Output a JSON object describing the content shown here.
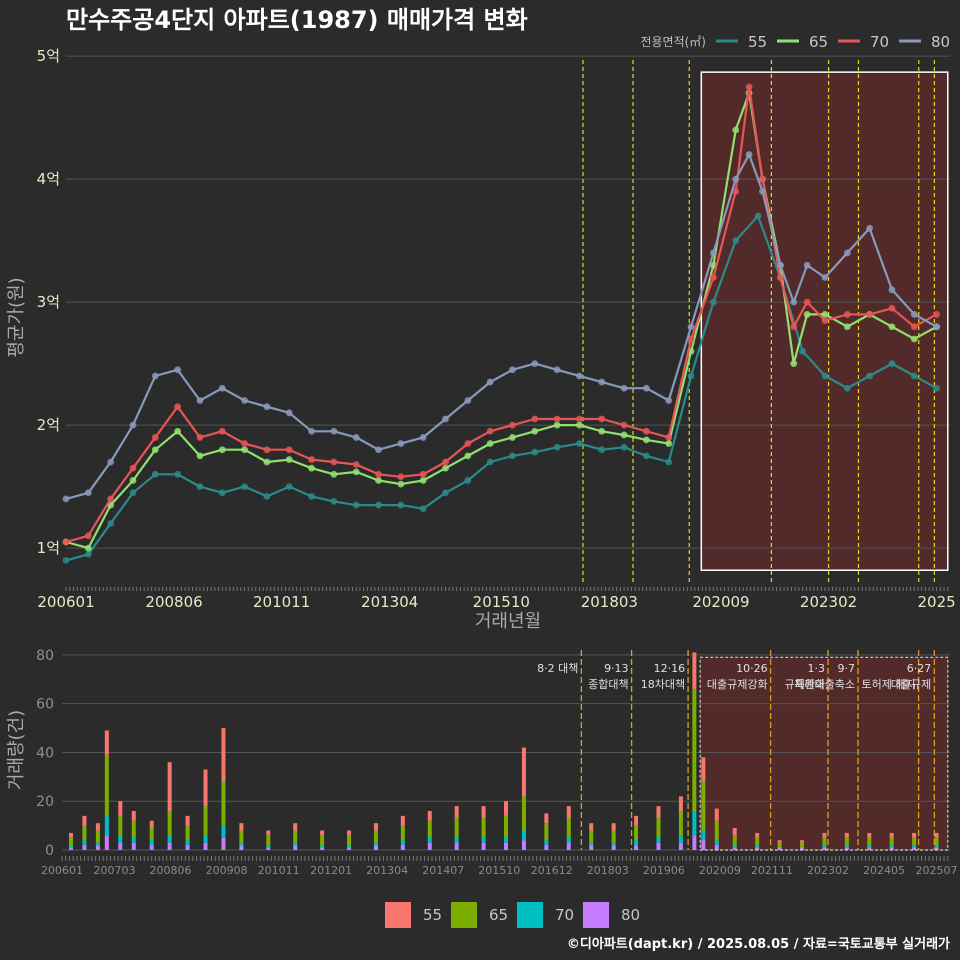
{
  "title": "만수주공4단지 아파트(1987) 매매가격 변화",
  "credit": "©디아파트(dapt.kr) / 2025.08.05 / 자료=국토교통부 실거래가",
  "colors": {
    "bg": "#2b2b2b",
    "grid": "#555555",
    "highlight_fill": "#5a2a2a",
    "vline": "#e6d81a",
    "vline2": "#d9a020"
  },
  "chart_data": [
    {
      "type": "line",
      "name": "price-chart",
      "xlabel": "거래년월",
      "ylabel": "평균가(원)",
      "y_unit": "억",
      "ylim": [
        0.7,
        5.05
      ],
      "y_ticks": [
        {
          "value": 1,
          "label": "1억"
        },
        {
          "value": 2,
          "label": "2억"
        },
        {
          "value": 3,
          "label": "3억"
        },
        {
          "value": 4,
          "label": "4억"
        },
        {
          "value": 5,
          "label": "5억"
        }
      ],
      "x_range": [
        2006.0,
        2025.8
      ],
      "x_ticks": [
        {
          "value": 2006.0,
          "label": "200601"
        },
        {
          "value": 2008.42,
          "label": "200806"
        },
        {
          "value": 2010.83,
          "label": "201011"
        },
        {
          "value": 2013.25,
          "label": "201304"
        },
        {
          "value": 2015.75,
          "label": "201510"
        },
        {
          "value": 2018.17,
          "label": "201803"
        },
        {
          "value": 2020.67,
          "label": "202009"
        },
        {
          "value": 2023.08,
          "label": "202302"
        },
        {
          "value": 2025.5,
          "label": "2025"
        }
      ],
      "legend": {
        "title": "전용면적(㎡)",
        "position": "top-right"
      },
      "series": [
        {
          "name": "55",
          "color": "#2b8a8a",
          "x": [
            2006.0,
            2006.5,
            2007.0,
            2007.5,
            2008.0,
            2008.5,
            2009.0,
            2009.5,
            2010.0,
            2010.5,
            2011.0,
            2011.5,
            2012.0,
            2012.5,
            2013.0,
            2013.5,
            2014.0,
            2014.5,
            2015.0,
            2015.5,
            2016.0,
            2016.5,
            2017.0,
            2017.5,
            2018.0,
            2018.5,
            2019.0,
            2019.5,
            2020.0,
            2020.5,
            2021.0,
            2021.5,
            2022.0,
            2022.5,
            2023.0,
            2023.5,
            2024.0,
            2024.5,
            2025.0,
            2025.5
          ],
          "y": [
            0.9,
            0.95,
            1.2,
            1.45,
            1.6,
            1.6,
            1.5,
            1.45,
            1.5,
            1.42,
            1.5,
            1.42,
            1.38,
            1.35,
            1.35,
            1.35,
            1.32,
            1.45,
            1.55,
            1.7,
            1.75,
            1.78,
            1.82,
            1.85,
            1.8,
            1.82,
            1.75,
            1.7,
            2.4,
            3.0,
            3.5,
            3.7,
            3.2,
            2.6,
            2.4,
            2.3,
            2.4,
            2.5,
            2.4,
            2.3
          ]
        },
        {
          "name": "65",
          "color": "#90e070",
          "x": [
            2006.0,
            2006.5,
            2007.0,
            2007.5,
            2008.0,
            2008.5,
            2009.0,
            2009.5,
            2010.0,
            2010.5,
            2011.0,
            2011.5,
            2012.0,
            2012.5,
            2013.0,
            2013.5,
            2014.0,
            2014.5,
            2015.0,
            2015.5,
            2016.0,
            2016.5,
            2017.0,
            2017.5,
            2018.0,
            2018.5,
            2019.0,
            2019.5,
            2020.0,
            2020.5,
            2021.0,
            2021.3,
            2021.6,
            2022.0,
            2022.3,
            2022.6,
            2023.0,
            2023.5,
            2024.0,
            2024.5,
            2025.0,
            2025.5
          ],
          "y": [
            1.05,
            1.0,
            1.35,
            1.55,
            1.8,
            1.95,
            1.75,
            1.8,
            1.8,
            1.7,
            1.72,
            1.65,
            1.6,
            1.62,
            1.55,
            1.52,
            1.55,
            1.65,
            1.75,
            1.85,
            1.9,
            1.95,
            2.0,
            2.0,
            1.95,
            1.92,
            1.88,
            1.85,
            2.6,
            3.3,
            4.4,
            4.7,
            4.0,
            3.3,
            2.5,
            2.9,
            2.9,
            2.8,
            2.9,
            2.8,
            2.7,
            2.8
          ]
        },
        {
          "name": "70",
          "color": "#e85555",
          "x": [
            2006.0,
            2006.5,
            2007.0,
            2007.5,
            2008.0,
            2008.5,
            2009.0,
            2009.5,
            2010.0,
            2010.5,
            2011.0,
            2011.5,
            2012.0,
            2012.5,
            2013.0,
            2013.5,
            2014.0,
            2014.5,
            2015.0,
            2015.5,
            2016.0,
            2016.5,
            2017.0,
            2017.5,
            2018.0,
            2018.5,
            2019.0,
            2019.5,
            2020.0,
            2020.5,
            2021.0,
            2021.3,
            2021.6,
            2022.0,
            2022.3,
            2022.6,
            2023.0,
            2023.5,
            2024.0,
            2024.5,
            2025.0,
            2025.5
          ],
          "y": [
            1.05,
            1.1,
            1.4,
            1.65,
            1.9,
            2.15,
            1.9,
            1.95,
            1.85,
            1.8,
            1.8,
            1.72,
            1.7,
            1.68,
            1.6,
            1.58,
            1.6,
            1.7,
            1.85,
            1.95,
            2.0,
            2.05,
            2.05,
            2.05,
            2.05,
            2.0,
            1.95,
            1.9,
            2.7,
            3.2,
            3.9,
            4.75,
            4.0,
            3.2,
            2.8,
            3.0,
            2.85,
            2.9,
            2.9,
            2.95,
            2.8,
            2.9
          ]
        },
        {
          "name": "80",
          "color": "#8899bb",
          "x": [
            2006.0,
            2006.5,
            2007.0,
            2007.5,
            2008.0,
            2008.5,
            2009.0,
            2009.5,
            2010.0,
            2010.5,
            2011.0,
            2011.5,
            2012.0,
            2012.5,
            2013.0,
            2013.5,
            2014.0,
            2014.5,
            2015.0,
            2015.5,
            2016.0,
            2016.5,
            2017.0,
            2017.5,
            2018.0,
            2018.5,
            2019.0,
            2019.5,
            2020.0,
            2020.5,
            2021.0,
            2021.3,
            2021.6,
            2022.0,
            2022.3,
            2022.6,
            2023.0,
            2023.5,
            2024.0,
            2024.5,
            2025.0,
            2025.5
          ],
          "y": [
            1.4,
            1.45,
            1.7,
            2.0,
            2.4,
            2.45,
            2.2,
            2.3,
            2.2,
            2.15,
            2.1,
            1.95,
            1.95,
            1.9,
            1.8,
            1.85,
            1.9,
            2.05,
            2.2,
            2.35,
            2.45,
            2.5,
            2.45,
            2.4,
            2.35,
            2.3,
            2.3,
            2.2,
            2.8,
            3.4,
            4.0,
            4.2,
            3.9,
            3.3,
            3.0,
            3.3,
            3.2,
            3.4,
            3.6,
            3.1,
            2.9,
            2.8
          ]
        }
      ],
      "highlight_box": {
        "x_start": 2020.23,
        "x_end": 2025.75,
        "y_start": 0.82,
        "y_end": 4.87
      },
      "vlines": [
        2017.58,
        2018.7,
        2019.96,
        2021.8,
        2023.08,
        2023.75,
        2025.1,
        2025.45
      ]
    },
    {
      "type": "bar",
      "name": "volume-chart",
      "xlabel": "",
      "ylabel": "거래량(건)",
      "ylim": [
        0,
        82
      ],
      "y_ticks": [
        0,
        20,
        40,
        60,
        80
      ],
      "x_range": [
        2006.0,
        2025.8
      ],
      "x_ticks": [
        {
          "value": 2006.0,
          "label": "200601"
        },
        {
          "value": 2007.17,
          "label": "200703"
        },
        {
          "value": 2008.42,
          "label": "200806"
        },
        {
          "value": 2009.67,
          "label": "200908"
        },
        {
          "value": 2010.83,
          "label": "201011"
        },
        {
          "value": 2012.0,
          "label": "201201"
        },
        {
          "value": 2013.25,
          "label": "201304"
        },
        {
          "value": 2014.5,
          "label": "201407"
        },
        {
          "value": 2015.75,
          "label": "201510"
        },
        {
          "value": 2016.92,
          "label": "201612"
        },
        {
          "value": 2018.17,
          "label": "201803"
        },
        {
          "value": 2019.42,
          "label": "201906"
        },
        {
          "value": 2020.67,
          "label": "202009"
        },
        {
          "value": 2021.83,
          "label": "202111"
        },
        {
          "value": 2023.08,
          "label": "202302"
        },
        {
          "value": 2024.33,
          "label": "202405"
        },
        {
          "value": 2025.5,
          "label": "202507"
        }
      ],
      "legend": {
        "position": "bottom"
      },
      "series_names": [
        "55",
        "65",
        "70",
        "80"
      ],
      "series_colors": [
        "#f8766d",
        "#7cae00",
        "#00bfc4",
        "#c77cff"
      ],
      "bars": [
        {
          "x": 2006.2,
          "v": [
            2,
            3,
            1,
            1
          ]
        },
        {
          "x": 2006.5,
          "v": [
            4,
            6,
            2,
            2
          ]
        },
        {
          "x": 2006.8,
          "v": [
            3,
            5,
            1,
            2
          ]
        },
        {
          "x": 2007.0,
          "v": [
            10,
            25,
            8,
            6
          ]
        },
        {
          "x": 2007.3,
          "v": [
            6,
            8,
            3,
            3
          ]
        },
        {
          "x": 2007.6,
          "v": [
            4,
            7,
            2,
            3
          ]
        },
        {
          "x": 2008.0,
          "v": [
            3,
            5,
            2,
            2
          ]
        },
        {
          "x": 2008.4,
          "v": [
            20,
            10,
            3,
            3
          ]
        },
        {
          "x": 2008.8,
          "v": [
            4,
            6,
            2,
            2
          ]
        },
        {
          "x": 2009.2,
          "v": [
            15,
            12,
            3,
            3
          ]
        },
        {
          "x": 2009.6,
          "v": [
            22,
            18,
            5,
            5
          ]
        },
        {
          "x": 2010.0,
          "v": [
            3,
            5,
            1,
            2
          ]
        },
        {
          "x": 2010.6,
          "v": [
            2,
            4,
            1,
            1
          ]
        },
        {
          "x": 2011.2,
          "v": [
            3,
            5,
            1,
            2
          ]
        },
        {
          "x": 2011.8,
          "v": [
            2,
            4,
            1,
            1
          ]
        },
        {
          "x": 2012.4,
          "v": [
            2,
            4,
            1,
            1
          ]
        },
        {
          "x": 2013.0,
          "v": [
            3,
            5,
            1,
            2
          ]
        },
        {
          "x": 2013.6,
          "v": [
            4,
            6,
            2,
            2
          ]
        },
        {
          "x": 2014.2,
          "v": [
            4,
            7,
            2,
            3
          ]
        },
        {
          "x": 2014.8,
          "v": [
            5,
            8,
            2,
            3
          ]
        },
        {
          "x": 2015.4,
          "v": [
            5,
            8,
            2,
            3
          ]
        },
        {
          "x": 2015.9,
          "v": [
            6,
            9,
            2,
            3
          ]
        },
        {
          "x": 2016.3,
          "v": [
            20,
            14,
            4,
            4
          ]
        },
        {
          "x": 2016.8,
          "v": [
            4,
            7,
            2,
            2
          ]
        },
        {
          "x": 2017.3,
          "v": [
            5,
            8,
            2,
            3
          ]
        },
        {
          "x": 2017.8,
          "v": [
            3,
            5,
            1,
            2
          ]
        },
        {
          "x": 2018.3,
          "v": [
            3,
            5,
            1,
            2
          ]
        },
        {
          "x": 2018.8,
          "v": [
            4,
            6,
            2,
            2
          ]
        },
        {
          "x": 2019.3,
          "v": [
            5,
            8,
            2,
            3
          ]
        },
        {
          "x": 2019.8,
          "v": [
            6,
            10,
            3,
            3
          ]
        },
        {
          "x": 2020.1,
          "v": [
            15,
            50,
            10,
            6
          ]
        },
        {
          "x": 2020.3,
          "v": [
            10,
            20,
            4,
            4
          ]
        },
        {
          "x": 2020.6,
          "v": [
            5,
            8,
            2,
            2
          ]
        },
        {
          "x": 2021.0,
          "v": [
            3,
            4,
            1,
            1
          ]
        },
        {
          "x": 2021.5,
          "v": [
            2,
            3,
            1,
            1
          ]
        },
        {
          "x": 2022.0,
          "v": [
            1,
            2,
            0,
            1
          ]
        },
        {
          "x": 2022.5,
          "v": [
            1,
            2,
            0,
            1
          ]
        },
        {
          "x": 2023.0,
          "v": [
            2,
            3,
            1,
            1
          ]
        },
        {
          "x": 2023.5,
          "v": [
            2,
            3,
            1,
            1
          ]
        },
        {
          "x": 2024.0,
          "v": [
            2,
            3,
            1,
            1
          ]
        },
        {
          "x": 2024.5,
          "v": [
            2,
            3,
            1,
            1
          ]
        },
        {
          "x": 2025.0,
          "v": [
            2,
            3,
            1,
            1
          ]
        },
        {
          "x": 2025.5,
          "v": [
            2,
            3,
            1,
            1
          ]
        }
      ],
      "highlight_box": {
        "x_start": 2020.23,
        "x_end": 2025.75,
        "y_start": 0,
        "y_end": 79
      },
      "annotations": [
        {
          "x": 2017.58,
          "lines": [
            "8·2 대책"
          ]
        },
        {
          "x": 2018.7,
          "lines": [
            "9·13",
            "종합대책"
          ]
        },
        {
          "x": 2019.96,
          "lines": [
            "12·16",
            "18차대책"
          ]
        },
        {
          "x": 2021.8,
          "lines": [
            "10·26",
            "대출규제강화"
          ]
        },
        {
          "x": 2023.08,
          "lines": [
            "1·3",
            "규제완화"
          ]
        },
        {
          "x": 2023.75,
          "lines": [
            "9·7",
            "특례대출축소"
          ]
        },
        {
          "x": 2025.1,
          "lines": [
            "",
            "토허제 해지"
          ]
        },
        {
          "x": 2025.45,
          "lines": [
            "6·27",
            "대출규제"
          ]
        }
      ],
      "vlines": [
        2017.58,
        2018.7,
        2019.96,
        2021.8,
        2023.08,
        2023.75,
        2025.1,
        2025.45
      ]
    }
  ]
}
